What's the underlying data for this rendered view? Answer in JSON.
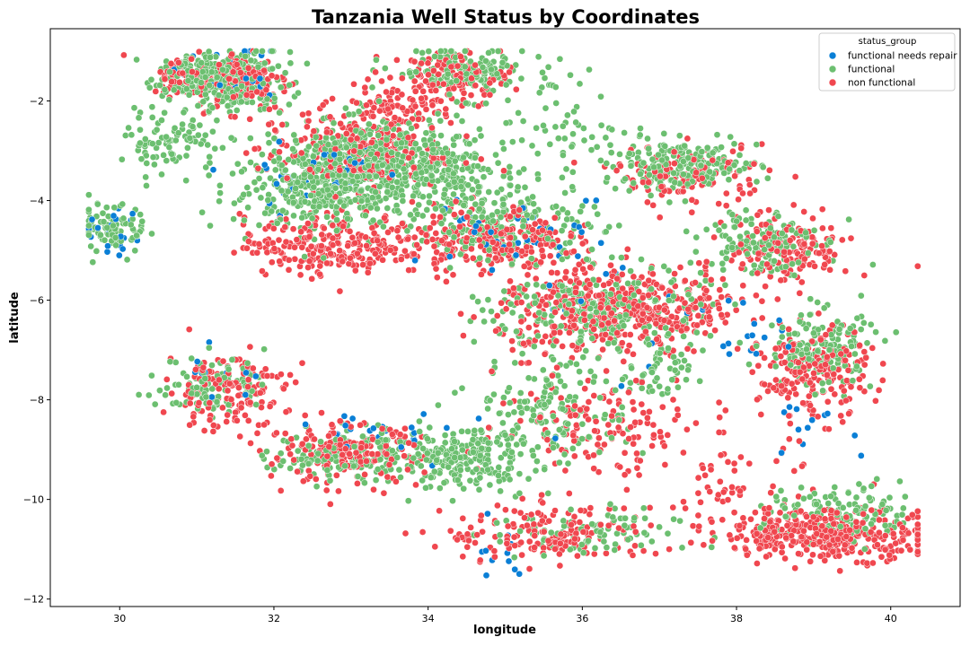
{
  "chart_data": {
    "type": "scatter",
    "title": "Tanzania Well Status by Coordinates",
    "xlabel": "longitude",
    "ylabel": "latitude",
    "xlim": [
      29.1,
      40.9
    ],
    "ylim": [
      -12.15,
      -0.55
    ],
    "xticks": [
      30,
      32,
      34,
      36,
      38,
      40
    ],
    "yticks": [
      -2,
      -4,
      -6,
      -8,
      -10,
      -12
    ],
    "grid": false,
    "legend": {
      "title": "status_group",
      "placement": "top-right",
      "entries": [
        "functional needs repair",
        "functional",
        "non functional"
      ]
    },
    "series": [
      {
        "name": "functional",
        "color": "#6cbf70",
        "clusters": [
          {
            "center": [
              31.5,
              -1.6
            ],
            "spread": [
              0.35,
              0.3
            ],
            "n": 220
          },
          {
            "center": [
              30.9,
              -1.5
            ],
            "spread": [
              0.25,
              0.2
            ],
            "n": 100
          },
          {
            "center": [
              34.4,
              -1.4
            ],
            "spread": [
              0.45,
              0.25
            ],
            "n": 150
          },
          {
            "center": [
              30.7,
              -2.8
            ],
            "spread": [
              0.3,
              0.3
            ],
            "n": 90
          },
          {
            "center": [
              29.9,
              -4.6
            ],
            "spread": [
              0.25,
              0.25
            ],
            "n": 80
          },
          {
            "center": [
              32.6,
              -3.8
            ],
            "spread": [
              0.6,
              0.4
            ],
            "n": 320
          },
          {
            "center": [
              33.2,
              -3.1
            ],
            "spread": [
              0.5,
              0.4
            ],
            "n": 300
          },
          {
            "center": [
              34.0,
              -3.4
            ],
            "spread": [
              0.5,
              0.4
            ],
            "n": 200
          },
          {
            "center": [
              35.0,
              -4.4
            ],
            "spread": [
              0.6,
              0.4
            ],
            "n": 220
          },
          {
            "center": [
              37.3,
              -3.3
            ],
            "spread": [
              0.5,
              0.25
            ],
            "n": 200
          },
          {
            "center": [
              38.3,
              -4.8
            ],
            "spread": [
              0.35,
              0.35
            ],
            "n": 140
          },
          {
            "center": [
              36.2,
              -6.2
            ],
            "spread": [
              0.7,
              0.45
            ],
            "n": 260
          },
          {
            "center": [
              39.1,
              -7.0
            ],
            "spread": [
              0.35,
              0.4
            ],
            "n": 160
          },
          {
            "center": [
              34.4,
              -9.2
            ],
            "spread": [
              0.5,
              0.3
            ],
            "n": 220
          },
          {
            "center": [
              33.0,
              -9.1
            ],
            "spread": [
              0.5,
              0.25
            ],
            "n": 140
          },
          {
            "center": [
              31.2,
              -7.7
            ],
            "spread": [
              0.35,
              0.3
            ],
            "n": 100
          },
          {
            "center": [
              35.6,
              -8.2
            ],
            "spread": [
              0.5,
              0.5
            ],
            "n": 150
          },
          {
            "center": [
              39.4,
              -10.3
            ],
            "spread": [
              0.5,
              0.3
            ],
            "n": 130
          },
          {
            "center": [
              36.0,
              -10.7
            ],
            "spread": [
              0.6,
              0.25
            ],
            "n": 90
          },
          {
            "center": [
              37.0,
              -7.5
            ],
            "spread": [
              0.2,
              0.3
            ],
            "n": 50
          },
          {
            "center": [
              35.5,
              -2.5
            ],
            "spread": [
              0.6,
              0.6
            ],
            "n": 70
          }
        ]
      },
      {
        "name": "non functional",
        "color": "#f0474f",
        "clusters": [
          {
            "center": [
              31.6,
              -1.6
            ],
            "spread": [
              0.3,
              0.3
            ],
            "n": 150
          },
          {
            "center": [
              30.9,
              -1.5
            ],
            "spread": [
              0.25,
              0.2
            ],
            "n": 70
          },
          {
            "center": [
              33.6,
              -2.1
            ],
            "spread": [
              0.4,
              0.2
            ],
            "n": 90
          },
          {
            "center": [
              34.3,
              -1.5
            ],
            "spread": [
              0.4,
              0.25
            ],
            "n": 100
          },
          {
            "center": [
              33.0,
              -3.0
            ],
            "spread": [
              0.6,
              0.4
            ],
            "n": 220
          },
          {
            "center": [
              32.8,
              -4.9
            ],
            "spread": [
              0.6,
              0.3
            ],
            "n": 260
          },
          {
            "center": [
              34.8,
              -4.8
            ],
            "spread": [
              0.5,
              0.35
            ],
            "n": 220
          },
          {
            "center": [
              36.1,
              -6.2
            ],
            "spread": [
              0.6,
              0.45
            ],
            "n": 320
          },
          {
            "center": [
              37.2,
              -6.2
            ],
            "spread": [
              0.5,
              0.35
            ],
            "n": 160
          },
          {
            "center": [
              38.7,
              -5.0
            ],
            "spread": [
              0.4,
              0.35
            ],
            "n": 150
          },
          {
            "center": [
              39.0,
              -7.5
            ],
            "spread": [
              0.35,
              0.45
            ],
            "n": 200
          },
          {
            "center": [
              39.2,
              -10.7
            ],
            "spread": [
              0.7,
              0.25
            ],
            "n": 360
          },
          {
            "center": [
              31.4,
              -7.8
            ],
            "spread": [
              0.4,
              0.4
            ],
            "n": 150
          },
          {
            "center": [
              32.9,
              -9.1
            ],
            "spread": [
              0.5,
              0.3
            ],
            "n": 180
          },
          {
            "center": [
              36.3,
              -8.5
            ],
            "spread": [
              0.7,
              0.5
            ],
            "n": 140
          },
          {
            "center": [
              35.6,
              -10.7
            ],
            "spread": [
              0.7,
              0.3
            ],
            "n": 160
          },
          {
            "center": [
              37.4,
              -3.5
            ],
            "spread": [
              0.5,
              0.3
            ],
            "n": 120
          },
          {
            "center": [
              38.0,
              -9.9
            ],
            "spread": [
              0.5,
              0.6
            ],
            "n": 70
          }
        ]
      },
      {
        "name": "functional needs repair",
        "color": "#0a7fd6",
        "clusters": [
          {
            "center": [
              29.9,
              -4.6
            ],
            "spread": [
              0.25,
              0.25
            ],
            "n": 25
          },
          {
            "center": [
              31.6,
              -1.6
            ],
            "spread": [
              0.3,
              0.3
            ],
            "n": 25
          },
          {
            "center": [
              32.6,
              -3.5
            ],
            "spread": [
              0.6,
              0.4
            ],
            "n": 35
          },
          {
            "center": [
              34.9,
              -4.6
            ],
            "spread": [
              0.5,
              0.35
            ],
            "n": 30
          },
          {
            "center": [
              33.5,
              -8.8
            ],
            "spread": [
              0.6,
              0.3
            ],
            "n": 25
          },
          {
            "center": [
              37.5,
              -6.8
            ],
            "spread": [
              0.6,
              0.5
            ],
            "n": 20
          },
          {
            "center": [
              35.0,
              -11.0
            ],
            "spread": [
              0.3,
              0.3
            ],
            "n": 12
          },
          {
            "center": [
              38.9,
              -8.5
            ],
            "spread": [
              0.3,
              0.3
            ],
            "n": 12
          },
          {
            "center": [
              36.0,
              -5.2
            ],
            "spread": [
              0.6,
              0.5
            ],
            "n": 20
          },
          {
            "center": [
              31.3,
              -7.5
            ],
            "spread": [
              0.3,
              0.3
            ],
            "n": 12
          }
        ]
      }
    ]
  }
}
